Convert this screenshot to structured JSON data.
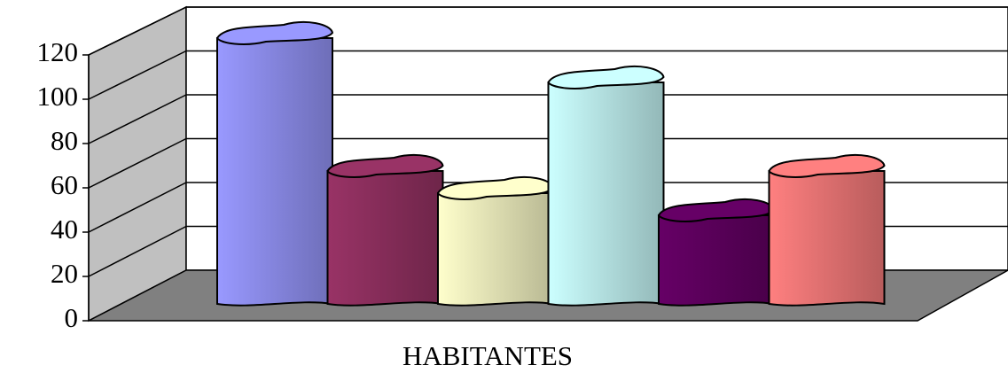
{
  "chart_data": {
    "type": "bar3d",
    "categories": [
      "HABITANTES"
    ],
    "series": [
      {
        "color": "#9999ff",
        "values": [
          120
        ]
      },
      {
        "color": "#993366",
        "values": [
          60
        ]
      },
      {
        "color": "#ffffcc",
        "values": [
          50
        ]
      },
      {
        "color": "#ccffff",
        "values": [
          100
        ]
      },
      {
        "color": "#660066",
        "values": [
          40
        ]
      },
      {
        "color": "#ff8080",
        "values": [
          60
        ]
      }
    ],
    "ylim": [
      0,
      120
    ],
    "yticks": [
      0,
      20,
      40,
      60,
      80,
      100,
      120
    ],
    "grid": true
  }
}
